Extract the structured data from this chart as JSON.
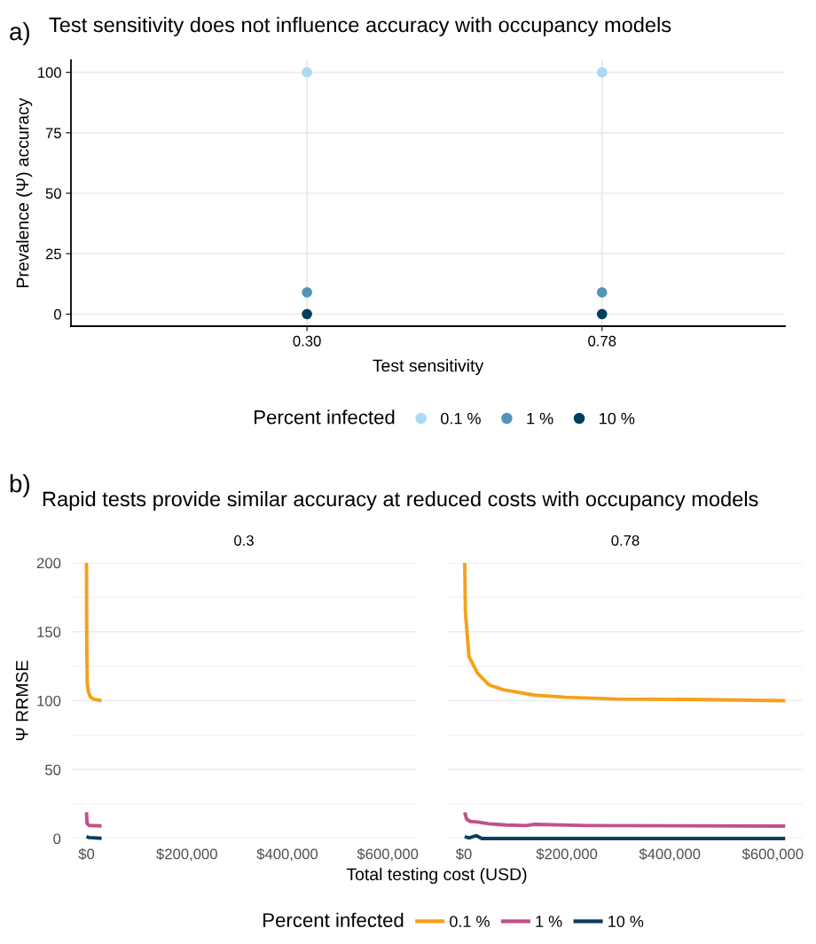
{
  "chart_data": [
    {
      "type": "scatter",
      "title": "Test sensitivity does not influence accuracy with occupancy models",
      "xlabel": "Test sensitivity",
      "ylabel": "Prevalence (Ψ) accuracy",
      "legend_title": "Percent infected",
      "legend": "bottom",
      "annotations": [
        "a)"
      ],
      "categories": [
        "0.30",
        "0.78"
      ],
      "ylim": [
        -5,
        105
      ],
      "yticks": [
        0,
        25,
        50,
        75,
        100
      ],
      "grid": true,
      "marker": "circle",
      "series": [
        {
          "name": "0.1 %",
          "color": "#a9daf2",
          "values": [
            100,
            100
          ]
        },
        {
          "name": "1 %",
          "color": "#5294b8",
          "values": [
            9,
            9
          ]
        },
        {
          "name": "10 %",
          "color": "#003f5f",
          "values": [
            0,
            0
          ]
        }
      ]
    },
    {
      "type": "line",
      "title": "Rapid tests provide similar accuracy at reduced costs with occupancy models",
      "subtitle": "0.3",
      "xlabel": "Total testing cost (USD)",
      "ylabel": "Ψ RRMSE",
      "legend_title": "Percent infected",
      "legend": "bottom",
      "annotations": [
        "b)"
      ],
      "xlim": [
        -31000,
        658000
      ],
      "xticks": [
        {
          "value": 0,
          "label": "$0"
        },
        {
          "value": 200000,
          "label": "$200,000"
        },
        {
          "value": 400000,
          "label": "$400,000"
        },
        {
          "value": 600000,
          "label": "$600,000"
        }
      ],
      "ylim": [
        0,
        200
      ],
      "yticks": [
        0,
        50,
        100,
        150,
        200
      ],
      "grid": "y",
      "line_style": "solid",
      "series": [
        {
          "name": "0.1 %",
          "color": "#f5a11c",
          "x": [
            0,
            300,
            800,
            1500,
            4000,
            8000,
            15000,
            30000
          ],
          "values": [
            200,
            154,
            130,
            112,
            106,
            102.5,
            101,
            100
          ]
        },
        {
          "name": "1 %",
          "color": "#c2508c",
          "x": [
            0,
            1000,
            5000,
            30000
          ],
          "values": [
            19,
            11,
            9.5,
            9.2
          ]
        },
        {
          "name": "10 %",
          "color": "#0b3d5e",
          "x": [
            0,
            5000,
            30000
          ],
          "values": [
            1.5,
            0.7,
            0.2
          ]
        }
      ]
    },
    {
      "type": "line",
      "subtitle": "0.78",
      "xlim": [
        -31000,
        658000
      ],
      "xticks": [
        {
          "value": 0,
          "label": "$0"
        },
        {
          "value": 200000,
          "label": "$200,000"
        },
        {
          "value": 400000,
          "label": "$400,000"
        },
        {
          "value": 600000,
          "label": "$600,000"
        }
      ],
      "ylim": [
        0,
        200
      ],
      "yticks": [
        0,
        50,
        100,
        150,
        200
      ],
      "tick_labels": "x",
      "grid": "y",
      "line_style": "solid",
      "series": [
        {
          "color": "#f5a11c",
          "x": [
            1600,
            3000,
            10000,
            26500,
            48600,
            76300,
            137000,
            198000,
            297500,
            463500,
            624000
          ],
          "values": [
            200,
            164,
            132,
            120,
            111.5,
            108,
            104,
            102.5,
            101.2,
            100.8,
            100
          ]
        },
        {
          "color": "#c2508c",
          "x": [
            1600,
            5500,
            12700,
            26500,
            48600,
            81800,
            120600,
            137000,
            240000,
            624000
          ],
          "values": [
            19,
            14,
            12.4,
            12,
            10.7,
            9.8,
            9.4,
            10.3,
            9.4,
            9
          ]
        },
        {
          "color": "#0b3d5e",
          "x": [
            1600,
            10000,
            23800,
            35000,
            624000
          ],
          "values": [
            1.3,
            0.4,
            2.1,
            0,
            0
          ]
        }
      ]
    }
  ]
}
